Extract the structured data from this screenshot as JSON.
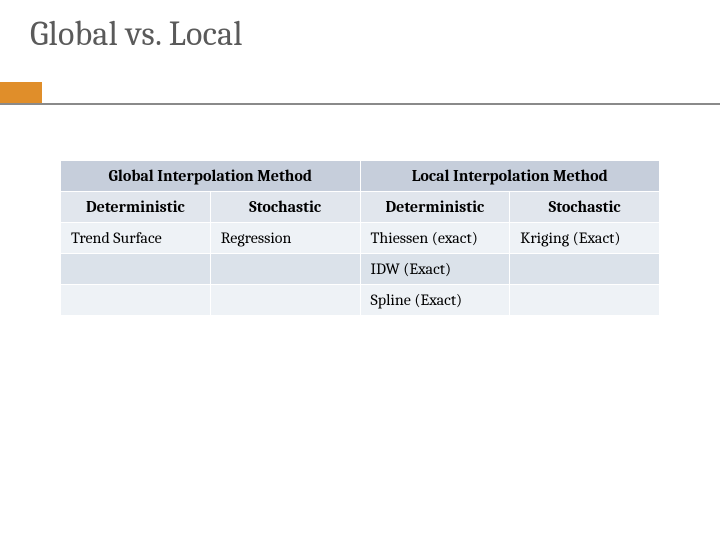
{
  "title": "Global vs. Local",
  "accent_color": "#e08e2a",
  "table": {
    "border_color": "#ffffff",
    "group_header_bg": "#c6cedb",
    "sub_header_bg": "#e1e6ed",
    "band_odd_bg": "#eef2f6",
    "band_even_bg": "#dbe2ea",
    "group_headers": [
      "Global Interpolation Method",
      "Local Interpolation Method"
    ],
    "sub_headers": [
      "Deterministic",
      "Stochastic",
      "Deterministic",
      "Stochastic"
    ],
    "rows": [
      [
        "Trend Surface",
        "Regression",
        "Thiessen (exact)",
        "Kriging (Exact)"
      ],
      [
        "",
        "",
        "IDW (Exact)",
        ""
      ],
      [
        "",
        "",
        "Spline (Exact)",
        ""
      ]
    ],
    "col_count": 4
  }
}
